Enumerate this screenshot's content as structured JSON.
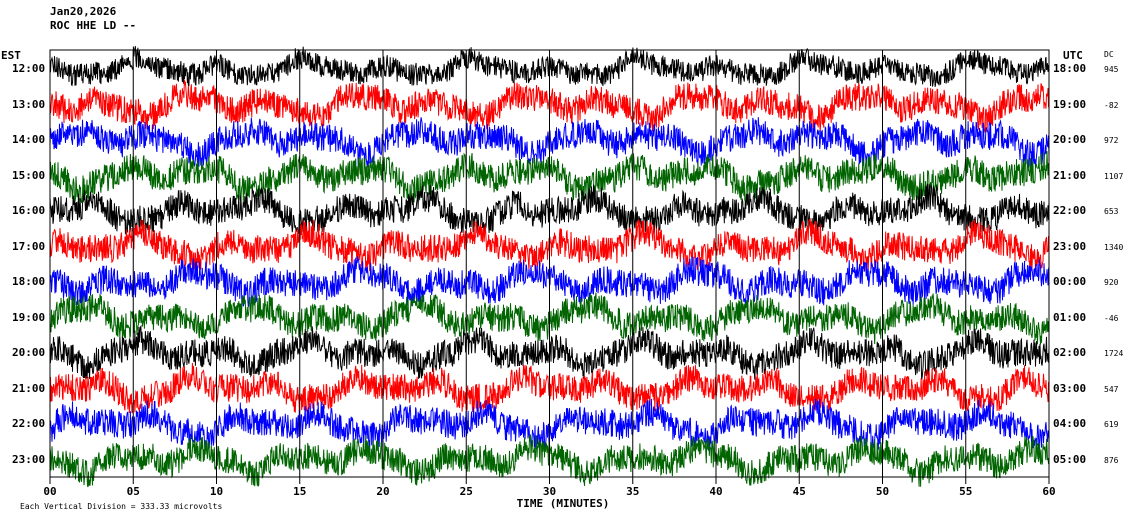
{
  "header": {
    "date": "Jan20,2026",
    "station": "ROC HHE LD --"
  },
  "footer": {
    "scale_note": "Each Vertical Division = 333.33 microvolts"
  },
  "chart_data": {
    "type": "line",
    "xlabel": "TIME (MINUTES)",
    "left_axis_label": "EST",
    "right_axis_label": "UTC",
    "dc_label": "DC",
    "x_ticks": [
      "00",
      "05",
      "10",
      "15",
      "20",
      "25",
      "30",
      "35",
      "40",
      "45",
      "50",
      "55",
      "60"
    ],
    "xlim": [
      0,
      60
    ],
    "colors": [
      "#000000",
      "#ff0000",
      "#0000ff",
      "#006400"
    ],
    "rows": [
      {
        "est": "12:00",
        "utc": "18:00",
        "dc": "945",
        "color": "#000000"
      },
      {
        "est": "13:00",
        "utc": "19:00",
        "dc": "-82",
        "color": "#ff0000"
      },
      {
        "est": "14:00",
        "utc": "20:00",
        "dc": "972",
        "color": "#0000ff"
      },
      {
        "est": "15:00",
        "utc": "21:00",
        "dc": "1107",
        "color": "#006400"
      },
      {
        "est": "16:00",
        "utc": "22:00",
        "dc": "653",
        "color": "#000000"
      },
      {
        "est": "17:00",
        "utc": "23:00",
        "dc": "1340",
        "color": "#ff0000"
      },
      {
        "est": "18:00",
        "utc": "00:00",
        "dc": "920",
        "color": "#0000ff"
      },
      {
        "est": "19:00",
        "utc": "01:00",
        "dc": "-46",
        "color": "#006400"
      },
      {
        "est": "20:00",
        "utc": "02:00",
        "dc": "1724",
        "color": "#000000"
      },
      {
        "est": "21:00",
        "utc": "03:00",
        "dc": "547",
        "color": "#ff0000"
      },
      {
        "est": "22:00",
        "utc": "04:00",
        "dc": "619",
        "color": "#0000ff"
      },
      {
        "est": "23:00",
        "utc": "05:00",
        "dc": "876",
        "color": "#006400"
      }
    ]
  }
}
